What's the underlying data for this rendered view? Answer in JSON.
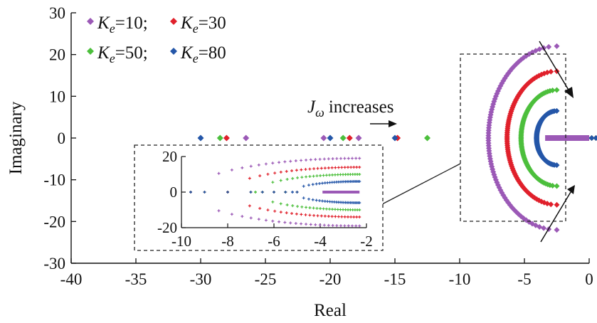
{
  "chart_data": {
    "type": "scatter",
    "title": "",
    "xlabel": "Real",
    "ylabel": "Imaginary",
    "xlim": [
      -40,
      0
    ],
    "ylim": [
      -30,
      30
    ],
    "xticks": [
      -40,
      -35,
      -30,
      -25,
      -20,
      -15,
      -10,
      -5,
      0
    ],
    "yticks": [
      30,
      20,
      10,
      0,
      -10,
      -20,
      -30
    ],
    "grid": false,
    "legend": {
      "placement": "top-left",
      "entries": [
        {
          "symbol": "K",
          "sub": "e",
          "value": "=10;",
          "color": "#9b59b6"
        },
        {
          "symbol": "K",
          "sub": "e",
          "value": "=30",
          "color": "#e0202b"
        },
        {
          "symbol": "K",
          "sub": "e",
          "value": "=50;",
          "color": "#4cbf3c"
        },
        {
          "symbol": "K",
          "sub": "e",
          "value": "=80",
          "color": "#2456a8"
        }
      ]
    },
    "annotation": {
      "symbol": "J",
      "sub": "ω",
      "text": "increases"
    },
    "series": [
      {
        "key": "Ke10",
        "color": "#9b59b6",
        "real_axis_x": [
          -26.5,
          -20.5,
          -17.8
        ],
        "loop_radius": 22,
        "loop_center": -2.5
      },
      {
        "key": "Ke30",
        "color": "#e0202b",
        "real_axis_x": [
          -28,
          -18.5,
          -14.8
        ],
        "loop_radius": 16,
        "loop_center": -2.5
      },
      {
        "key": "Ke50",
        "color": "#4cbf3c",
        "real_axis_x": [
          -28.5,
          -19,
          -12.5
        ],
        "loop_radius": 11.5,
        "loop_center": -2.5
      },
      {
        "key": "Ke80",
        "color": "#2456a8",
        "real_axis_x": [
          -30,
          -20,
          -15
        ],
        "loop_radius": 6.5,
        "loop_center": -2.5
      }
    ],
    "inset": {
      "xlim": [
        -10,
        -2
      ],
      "ylim": [
        -20,
        20
      ],
      "xticks": [
        -10,
        -8,
        -6,
        -4,
        -2
      ],
      "yticks": [
        20,
        0,
        -20
      ]
    }
  }
}
